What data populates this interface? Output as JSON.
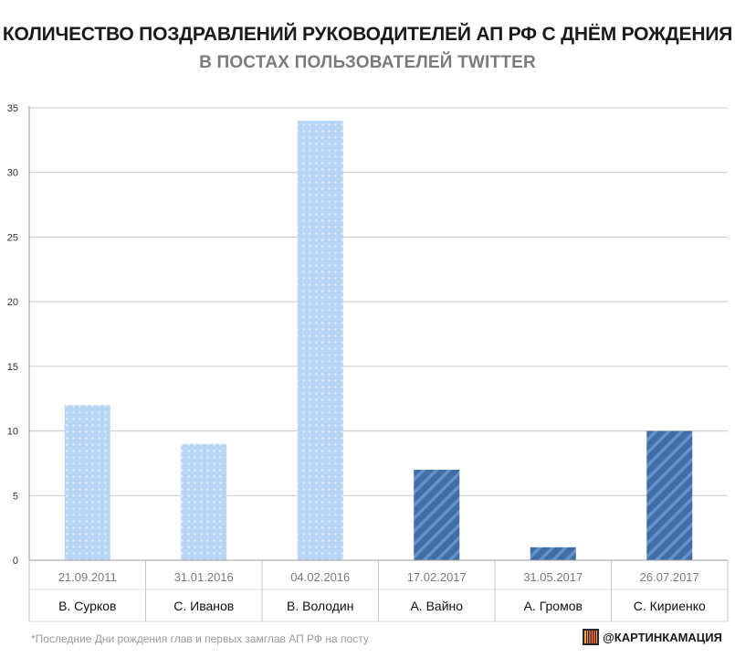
{
  "header": {
    "title": "КОЛИЧЕСТВО ПОЗДРАВЛЕНИЙ РУКОВОДИТЕЛЕЙ АП РФ С ДНЁМ РОЖДЕНИЯ",
    "subtitle": "В ПОСТАХ ПОЛЬЗОВАТЕЛЕЙ TWITTER"
  },
  "footer": {
    "footnote": "*Последние Дни рождения глав и первых замглав АП РФ на посту",
    "brand": "@КАРТИНКАМАЦИЯ",
    "brand_icon": "barcode-logo-icon"
  },
  "colors": {
    "light_bar": "#b7d6f6",
    "light_dot": "#e8f2fd",
    "dark_bar": "#3f6ea8",
    "dark_stripe": "#6591c6",
    "axis": "#9a9a9a",
    "grid": "#c8c8c8"
  },
  "chart_data": {
    "type": "bar",
    "title": "КОЛИЧЕСТВО ПОЗДРАВЛЕНИЙ РУКОВОДИТЕЛЕЙ АП РФ С ДНЁМ РОЖДЕНИЯ",
    "subtitle": "В ПОСТАХ ПОЛЬЗОВАТЕЛЕЙ TWITTER",
    "categories": [
      "В. Сурков",
      "С. Иванов",
      "В. Володин",
      "А. Вайно",
      "А. Громов",
      "С. Кириенко"
    ],
    "dates": [
      "21.09.2011",
      "31.01.2016",
      "04.02.2016",
      "17.02.2017",
      "31.05.2017",
      "26.07.2017"
    ],
    "values": [
      12,
      9,
      34,
      7,
      1,
      10
    ],
    "styles": [
      "dotted-light",
      "dotted-light",
      "dotted-light",
      "striped-dark",
      "striped-dark",
      "striped-dark"
    ],
    "ylim": [
      0,
      35
    ],
    "yticks": [
      0,
      5,
      10,
      15,
      20,
      25,
      30,
      35
    ],
    "grid": true,
    "xlabel": "",
    "ylabel": ""
  }
}
